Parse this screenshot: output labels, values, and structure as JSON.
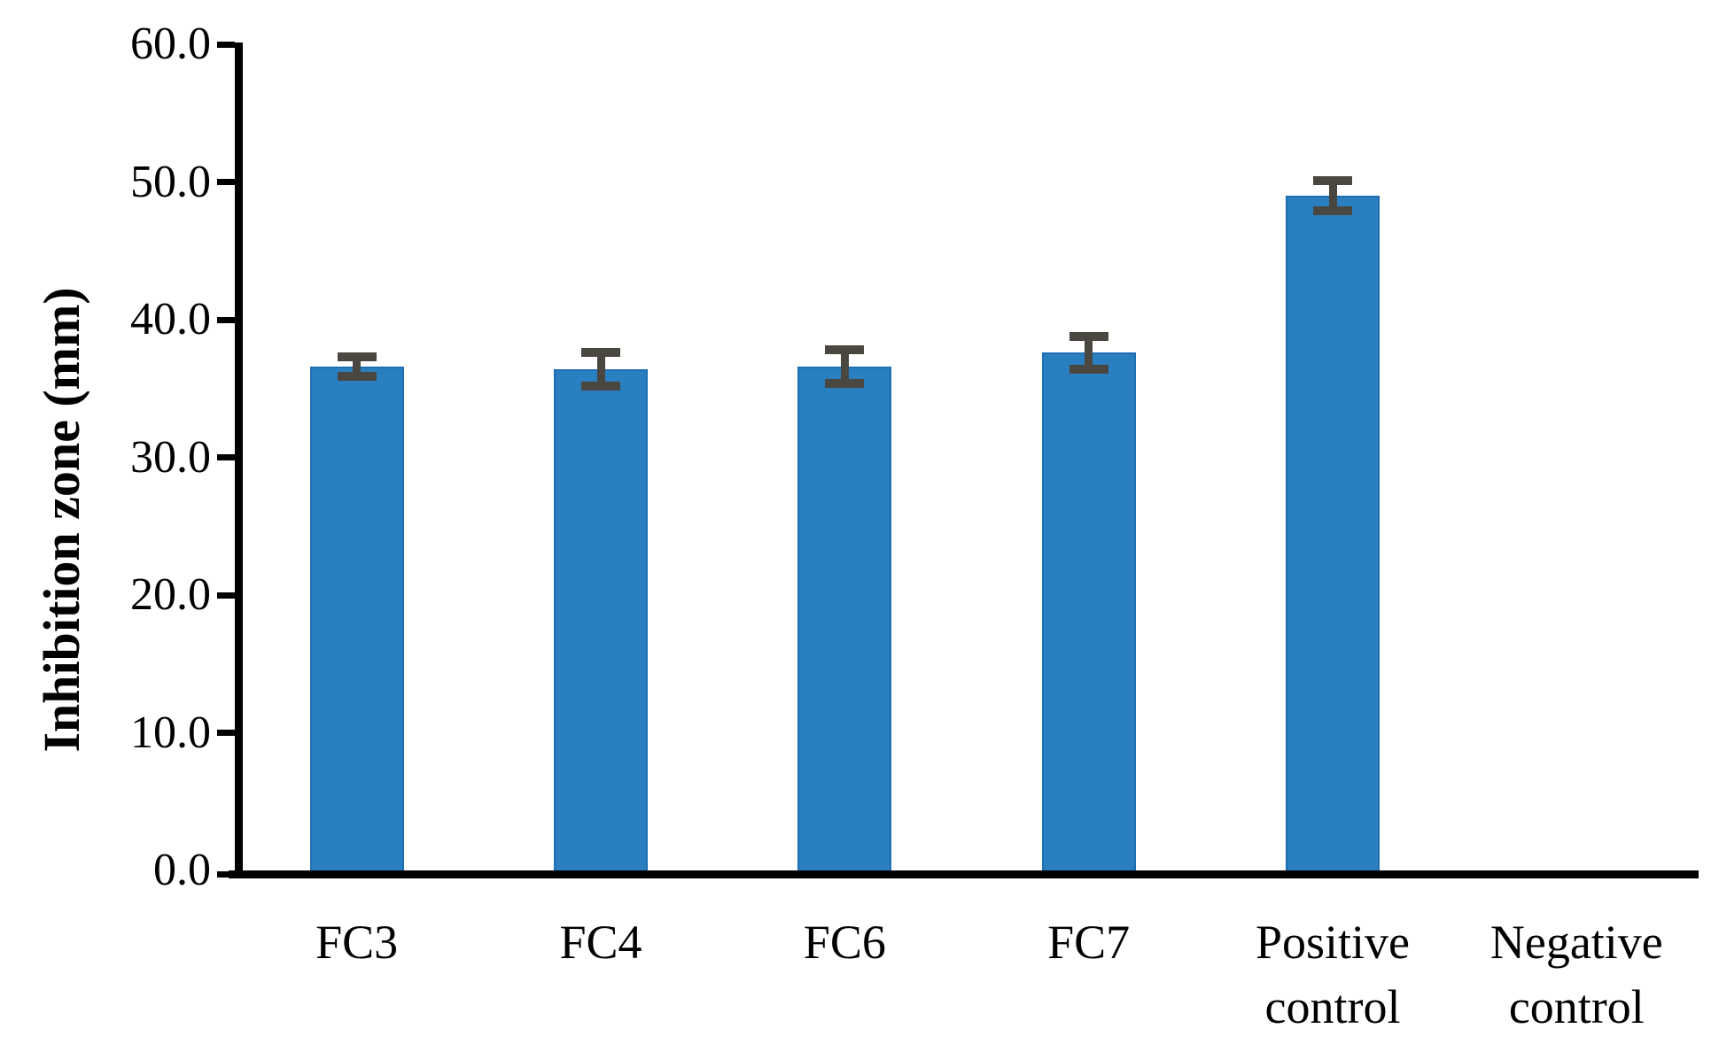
{
  "chart_data": {
    "type": "bar",
    "title": "",
    "xlabel": "",
    "ylabel": "Inhibition zone (mm)",
    "ylim": [
      0,
      60
    ],
    "ytick_values": [
      0,
      10,
      20,
      30,
      40,
      50,
      60
    ],
    "ytick_labels": [
      "0.0",
      "10.0",
      "20.0",
      "30.0",
      "40.0",
      "50.0",
      "60.0"
    ],
    "grid": false,
    "legend": null,
    "categories": [
      "FC3",
      "FC4",
      "FC6",
      "FC7",
      "Positive control",
      "Negative control"
    ],
    "category_label_lines": [
      [
        "FC3"
      ],
      [
        "FC4"
      ],
      [
        "FC6"
      ],
      [
        "FC7"
      ],
      [
        "Positive",
        "control"
      ],
      [
        "Negative",
        "control"
      ]
    ],
    "series": [
      {
        "name": "Inhibition zone",
        "values": [
          36.6,
          36.4,
          36.6,
          37.6,
          49.0,
          0
        ],
        "errors": [
          0.7,
          1.2,
          1.2,
          1.2,
          1.1,
          0
        ]
      }
    ],
    "colors": {
      "bar_fill": "#2a7fc1",
      "bar_border": "#1e6eb4",
      "error_bar": "#4a4741",
      "axis": "#000000",
      "text": "#000000",
      "background": "#ffffff"
    }
  }
}
